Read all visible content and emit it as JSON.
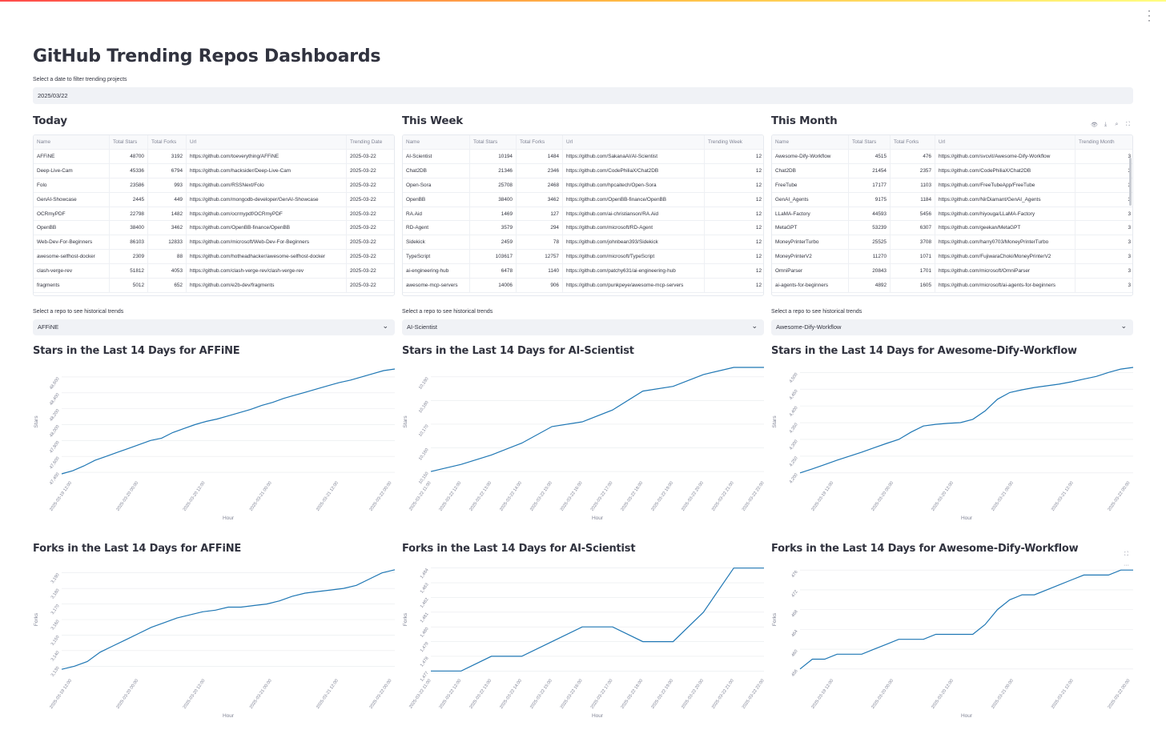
{
  "app": {
    "title": "GitHub Trending Repos Dashboards",
    "date_label": "Select a date to filter trending projects",
    "date_value": "2025/03/22",
    "accent_color": "#1f77b4",
    "gradient_colors": [
      "#ff4b4b",
      "#ffbd45",
      "#fffd80"
    ]
  },
  "icons": {
    "menu": "more-vertical-icon",
    "eye": "eye-icon",
    "download": "download-icon",
    "search": "search-icon",
    "fullscreen": "fullscreen-icon",
    "chevron": "chevron-down-icon"
  },
  "columns": [
    {
      "title": "Today",
      "headers": [
        "Name",
        "Total Stars",
        "Total Forks",
        "Url",
        "Trending Date"
      ],
      "rows": [
        [
          "AFFiNE",
          "48700",
          "3192",
          "https://github.com/toeverything/AFFiNE",
          "2025-03-22"
        ],
        [
          "Deep-Live-Cam",
          "45336",
          "6794",
          "https://github.com/hacksider/Deep-Live-Cam",
          "2025-03-22"
        ],
        [
          "Folo",
          "23586",
          "993",
          "https://github.com/RSSNext/Folo",
          "2025-03-22"
        ],
        [
          "GenAI-Showcase",
          "2445",
          "449",
          "https://github.com/mongodb-developer/GenAI-Showcase",
          "2025-03-22"
        ],
        [
          "OCRmyPDF",
          "22798",
          "1482",
          "https://github.com/ocrmypdf/OCRmyPDF",
          "2025-03-22"
        ],
        [
          "OpenBB",
          "38400",
          "3462",
          "https://github.com/OpenBB-finance/OpenBB",
          "2025-03-22"
        ],
        [
          "Web-Dev-For-Beginners",
          "86103",
          "12833",
          "https://github.com/microsoft/Web-Dev-For-Beginners",
          "2025-03-22"
        ],
        [
          "awesome-selfhost-docker",
          "2309",
          "88",
          "https://github.com/hotheadhacker/awesome-selfhost-docker",
          "2025-03-22"
        ],
        [
          "clash-verge-rev",
          "51812",
          "4053",
          "https://github.com/clash-verge-rev/clash-verge-rev",
          "2025-03-22"
        ],
        [
          "fragments",
          "5012",
          "652",
          "https://github.com/e2b-dev/fragments",
          "2025-03-22"
        ]
      ],
      "select_label": "Select a repo to see historical trends",
      "selected_repo": "AFFiNE"
    },
    {
      "title": "This Week",
      "headers": [
        "Name",
        "Total Stars",
        "Total Forks",
        "Url",
        "Trending Week"
      ],
      "rows": [
        [
          "AI-Scientist",
          "10194",
          "1484",
          "https://github.com/SakanaAI/AI-Scientist",
          "12"
        ],
        [
          "Chat2DB",
          "21346",
          "2346",
          "https://github.com/CodePhiliaX/Chat2DB",
          "12"
        ],
        [
          "Open-Sora",
          "25708",
          "2468",
          "https://github.com/hpcaitech/Open-Sora",
          "12"
        ],
        [
          "OpenBB",
          "38400",
          "3462",
          "https://github.com/OpenBB-finance/OpenBB",
          "12"
        ],
        [
          "RA.Aid",
          "1469",
          "127",
          "https://github.com/ai-christianson/RA.Aid",
          "12"
        ],
        [
          "RD-Agent",
          "3579",
          "294",
          "https://github.com/microsoft/RD-Agent",
          "12"
        ],
        [
          "Sidekick",
          "2459",
          "78",
          "https://github.com/johnbean393/Sidekick",
          "12"
        ],
        [
          "TypeScript",
          "103617",
          "12757",
          "https://github.com/microsoft/TypeScript",
          "12"
        ],
        [
          "ai-engineering-hub",
          "6478",
          "1140",
          "https://github.com/patchy631/ai-engineering-hub",
          "12"
        ],
        [
          "awesome-mcp-servers",
          "14006",
          "906",
          "https://github.com/punkpeye/awesome-mcp-servers",
          "12"
        ]
      ],
      "select_label": "Select a repo to see historical trends",
      "selected_repo": "AI-Scientist"
    },
    {
      "title": "This Month",
      "headers": [
        "Name",
        "Total Stars",
        "Total Forks",
        "Url",
        "Trending Month"
      ],
      "rows": [
        [
          "Awesome-Dify-Workflow",
          "4515",
          "476",
          "https://github.com/svcvit/Awesome-Dify-Workflow",
          "3"
        ],
        [
          "Chat2DB",
          "21454",
          "2357",
          "https://github.com/CodePhiliaX/Chat2DB",
          "3"
        ],
        [
          "FreeTube",
          "17177",
          "1103",
          "https://github.com/FreeTubeApp/FreeTube",
          "3"
        ],
        [
          "GenAI_Agents",
          "9175",
          "1184",
          "https://github.com/NirDiamant/GenAI_Agents",
          "3"
        ],
        [
          "LLaMA-Factory",
          "44593",
          "5456",
          "https://github.com/hiyouga/LLaMA-Factory",
          "3"
        ],
        [
          "MetaGPT",
          "53239",
          "6307",
          "https://github.com/geekan/MetaGPT",
          "3"
        ],
        [
          "MoneyPrinterTurbo",
          "25525",
          "3708",
          "https://github.com/harry0703/MoneyPrinterTurbo",
          "3"
        ],
        [
          "MoneyPrinterV2",
          "11270",
          "1071",
          "https://github.com/FujiwaraChoki/MoneyPrinterV2",
          "3"
        ],
        [
          "OmniParser",
          "20843",
          "1701",
          "https://github.com/microsoft/OmniParser",
          "3"
        ],
        [
          "ai-agents-for-beginners",
          "4892",
          "1605",
          "https://github.com/microsoft/ai-agents-for-beginners",
          "3"
        ]
      ],
      "select_label": "Select a repo to see historical trends",
      "selected_repo": "Awesome-Dify-Workflow"
    }
  ],
  "chart_data": [
    {
      "type": "line",
      "title": "Stars in the Last 14 Days for AFFiNE",
      "xlabel": "Hour",
      "ylabel": "Stars",
      "ylim": [
        47350,
        48720
      ],
      "y_ticks": [
        "47,400",
        "47,600",
        "47,800",
        "48,000",
        "48,200",
        "48,400",
        "48,600"
      ],
      "y_tick_values": [
        47400,
        47600,
        47800,
        48000,
        48200,
        48400,
        48600
      ],
      "x_ticks": [
        "2025-03-19 12:00",
        "2025-03-20 00:00",
        "2025-03-20 12:00",
        "2025-03-21 00:00",
        "2025-03-21 12:00",
        "2025-03-22 00:00"
      ],
      "x_tick_pos": [
        0.03,
        0.23,
        0.43,
        0.63,
        0.83,
        0.99
      ],
      "series": [
        {
          "values": [
            47380,
            47420,
            47480,
            47550,
            47600,
            47650,
            47700,
            47750,
            47800,
            47830,
            47900,
            47950,
            48000,
            48040,
            48070,
            48110,
            48150,
            48190,
            48240,
            48280,
            48330,
            48370,
            48410,
            48450,
            48490,
            48530,
            48560,
            48600,
            48640,
            48680,
            48700
          ]
        }
      ]
    },
    {
      "type": "line",
      "title": "Stars in the Last 14 Days for AI-Scientist",
      "xlabel": "Hour",
      "ylabel": "Stars",
      "ylim": [
        10148,
        10194
      ],
      "y_ticks": [
        "10,150",
        "10,160",
        "10,170",
        "10,180",
        "10,190"
      ],
      "y_tick_values": [
        10150,
        10160,
        10170,
        10180,
        10190
      ],
      "x_ticks": [
        "2025-03-22 11:00",
        "2025-03-22 12:00",
        "2025-03-22 13:00",
        "2025-03-22 14:00",
        "2025-03-22 15:00",
        "2025-03-22 16:00",
        "2025-03-22 17:00",
        "2025-03-22 18:00",
        "2025-03-22 19:00",
        "2025-03-22 20:00",
        "2025-03-22 21:00",
        "2025-03-22 22:00"
      ],
      "x_tick_pos": [
        0,
        0.0909,
        0.1818,
        0.2727,
        0.3636,
        0.4545,
        0.5454,
        0.6363,
        0.7272,
        0.8181,
        0.909,
        1
      ],
      "series": [
        {
          "values": [
            10150,
            10153,
            10157,
            10162,
            10169,
            10171,
            10176,
            10184,
            10186,
            10191,
            10194,
            10194
          ]
        }
      ]
    },
    {
      "type": "line",
      "title": "Stars in the Last 14 Days for Awesome-Dify-Workflow",
      "xlabel": "Hour",
      "ylabel": "Stars",
      "ylim": [
        4190,
        4515
      ],
      "y_ticks": [
        "4,200",
        "4,250",
        "4,300",
        "4,350",
        "4,400",
        "4,450",
        "4,500"
      ],
      "y_tick_values": [
        4200,
        4250,
        4300,
        4350,
        4400,
        4450,
        4500
      ],
      "x_ticks": [
        "2025-03-19 12:00",
        "2025-03-20 00:00",
        "2025-03-20 12:00",
        "2025-03-21 00:00",
        "2025-03-21 12:00",
        "2025-03-22 00:00"
      ],
      "x_tick_pos": [
        0.1,
        0.28,
        0.46,
        0.64,
        0.82,
        0.99
      ],
      "series": [
        {
          "values": [
            4200,
            4212,
            4225,
            4238,
            4250,
            4262,
            4275,
            4288,
            4300,
            4322,
            4340,
            4345,
            4348,
            4350,
            4360,
            4385,
            4420,
            4440,
            4448,
            4455,
            4460,
            4465,
            4472,
            4480,
            4488,
            4500,
            4510,
            4515
          ]
        }
      ]
    },
    {
      "type": "line",
      "title": "Forks in the Last 14 Days for AFFiNE",
      "xlabel": "Hour",
      "ylabel": "Forks",
      "ylim": [
        3125,
        3195
      ],
      "y_ticks": [
        "3,130",
        "3,140",
        "3,150",
        "3,160",
        "3,170",
        "3,180",
        "3,190"
      ],
      "y_tick_values": [
        3130,
        3140,
        3150,
        3160,
        3170,
        3180,
        3190
      ],
      "x_ticks": [
        "2025-03-19 12:00",
        "2025-03-20 00:00",
        "2025-03-20 12:00",
        "2025-03-21 00:00",
        "2025-03-21 12:00",
        "2025-03-22 00:00"
      ],
      "x_tick_pos": [
        0.03,
        0.23,
        0.43,
        0.63,
        0.83,
        0.99
      ],
      "series": [
        {
          "values": [
            3128,
            3130,
            3133,
            3139,
            3143,
            3147,
            3151,
            3155,
            3158,
            3161,
            3163,
            3165,
            3166,
            3168,
            3168,
            3169,
            3170,
            3172,
            3175,
            3177,
            3178,
            3179,
            3180,
            3182,
            3186,
            3190,
            3192
          ]
        }
      ]
    },
    {
      "type": "line",
      "title": "Forks in the Last 14 Days for AI-Scientist",
      "xlabel": "Hour",
      "ylabel": "Forks",
      "ylim": [
        1476.8,
        1484.2
      ],
      "y_ticks": [
        "1,477",
        "1,478",
        "1,479",
        "1,480",
        "1,481",
        "1,482",
        "1,483",
        "1,484"
      ],
      "y_tick_values": [
        1477,
        1478,
        1479,
        1480,
        1481,
        1482,
        1483,
        1484
      ],
      "x_ticks": [
        "2025-03-22 11:00",
        "2025-03-22 12:00",
        "2025-03-22 13:00",
        "2025-03-22 14:00",
        "2025-03-22 15:00",
        "2025-03-22 16:00",
        "2025-03-22 17:00",
        "2025-03-22 18:00",
        "2025-03-22 19:00",
        "2025-03-22 20:00",
        "2025-03-22 21:00",
        "2025-03-22 22:00"
      ],
      "x_tick_pos": [
        0,
        0.0909,
        0.1818,
        0.2727,
        0.3636,
        0.4545,
        0.5454,
        0.6363,
        0.7272,
        0.8181,
        0.909,
        1
      ],
      "series": [
        {
          "values": [
            1477,
            1477,
            1478,
            1478,
            1479,
            1480,
            1480,
            1479,
            1479,
            1481,
            1484,
            1484
          ]
        }
      ]
    },
    {
      "type": "line",
      "title": "Forks in the Last 14 Days for Awesome-Dify-Workflow",
      "xlabel": "Hour",
      "ylabel": "Forks",
      "ylim": [
        455,
        477
      ],
      "y_ticks": [
        "456",
        "460",
        "464",
        "468",
        "472",
        "476"
      ],
      "y_tick_values": [
        456,
        460,
        464,
        468,
        472,
        476
      ],
      "x_ticks": [
        "2025-03-19 12:00",
        "2025-03-20 00:00",
        "2025-03-20 12:00",
        "2025-03-21 00:00",
        "2025-03-21 12:00",
        "2025-03-22 00:00"
      ],
      "x_tick_pos": [
        0.1,
        0.28,
        0.46,
        0.64,
        0.82,
        0.99
      ],
      "series": [
        {
          "values": [
            456,
            458,
            458,
            459,
            459,
            459,
            460,
            461,
            462,
            462,
            462,
            463,
            463,
            463,
            463,
            465,
            468,
            470,
            471,
            471,
            472,
            473,
            474,
            475,
            475,
            475,
            476,
            476
          ]
        }
      ]
    }
  ]
}
